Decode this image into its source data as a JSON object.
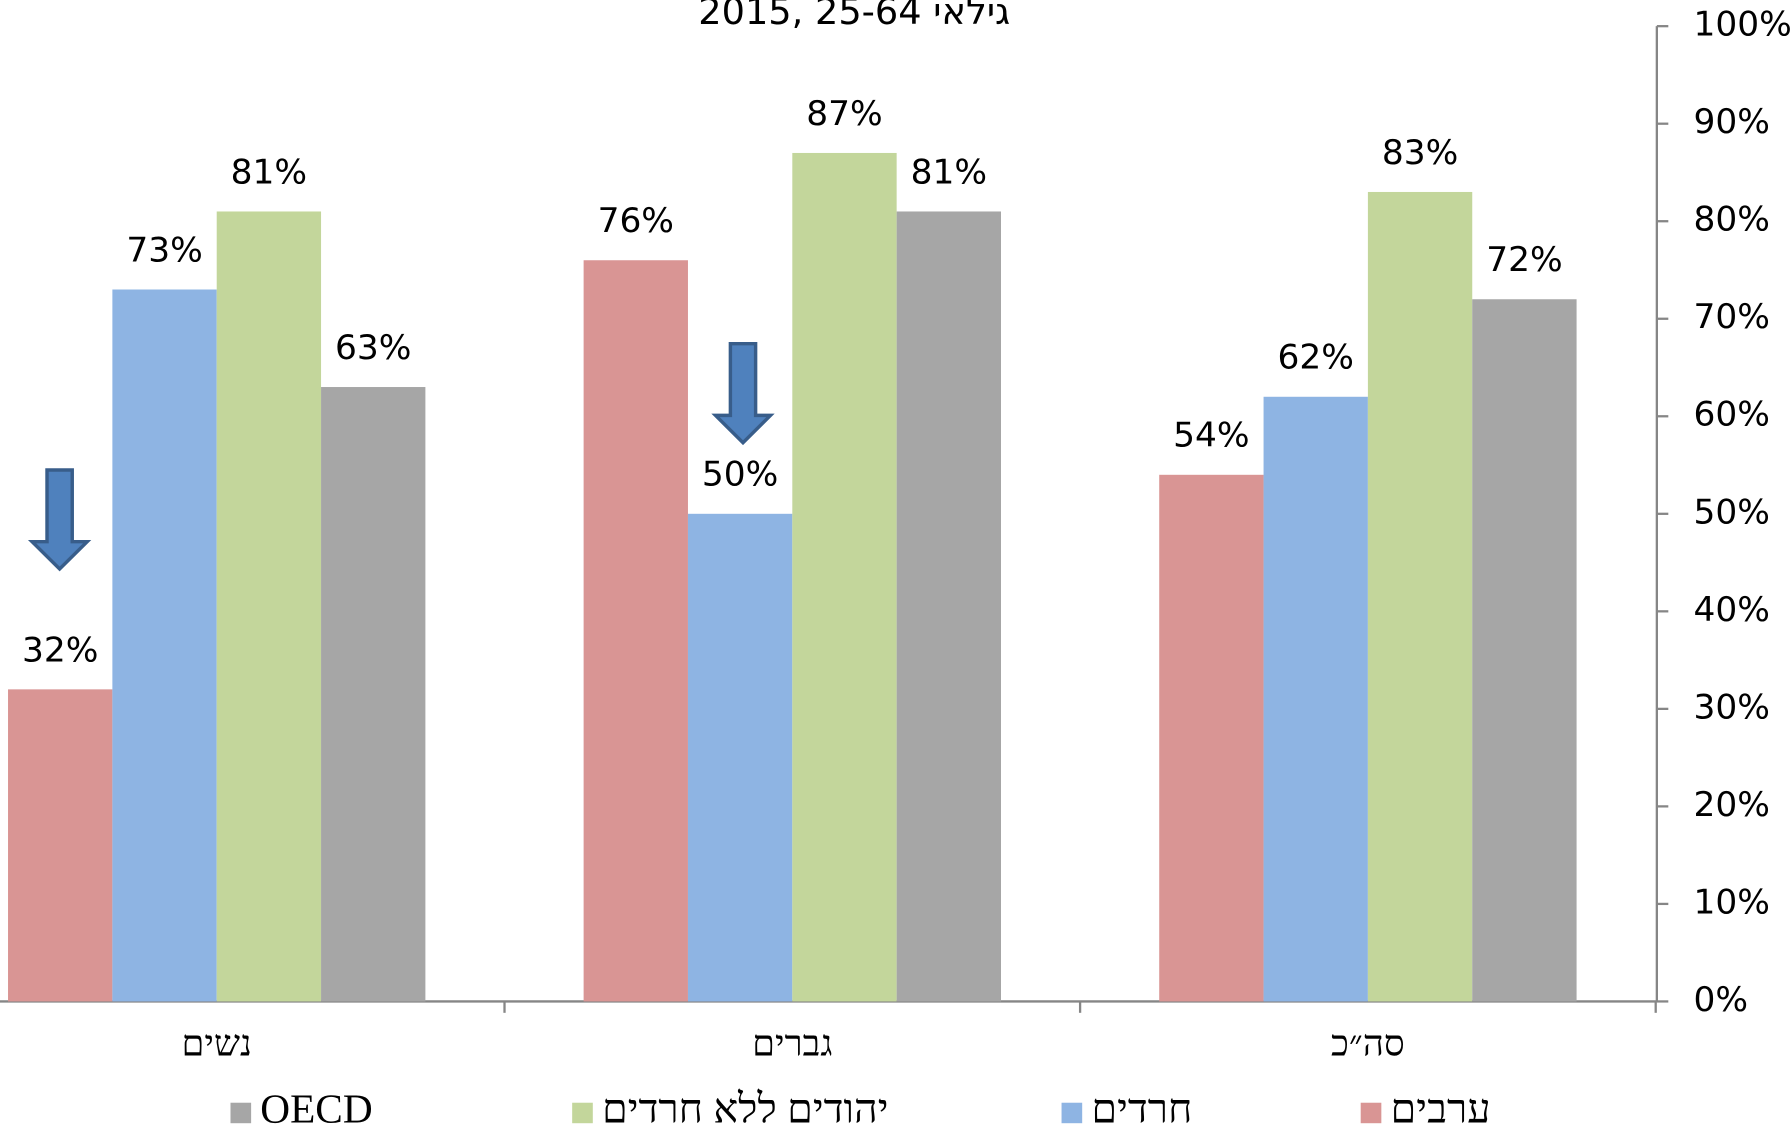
{
  "chart_data": {
    "type": "bar",
    "title": "2015, גילאי 25-64",
    "categories": [
      "נשים",
      "גברים",
      "סה״כ"
    ],
    "series": [
      {
        "name": "ערבים",
        "color": "#d99594",
        "values": [
          32,
          76,
          54
        ],
        "value_labels": [
          "32%",
          "76%",
          "54%"
        ]
      },
      {
        "name": "חרדים",
        "color": "#8eb4e3",
        "values": [
          73,
          50,
          62
        ],
        "value_labels": [
          "73%",
          "50%",
          "62%"
        ]
      },
      {
        "name": "יהודים ללא חרדים",
        "color": "#c3d69b",
        "values": [
          81,
          87,
          83
        ],
        "value_labels": [
          "81%",
          "87%",
          "83%"
        ]
      },
      {
        "name": "OECD",
        "color": "#a6a6a6",
        "values": [
          63,
          81,
          72
        ],
        "value_labels": [
          "63%",
          "81%",
          "72%"
        ]
      }
    ],
    "ylim": [
      0,
      100
    ],
    "yticks": [
      {
        "value": 0,
        "label": "0%"
      },
      {
        "value": 10,
        "label": "10%"
      },
      {
        "value": 20,
        "label": "20%"
      },
      {
        "value": 30,
        "label": "30%"
      },
      {
        "value": 40,
        "label": "40%"
      },
      {
        "value": 50,
        "label": "50%"
      },
      {
        "value": 60,
        "label": "60%"
      },
      {
        "value": 70,
        "label": "70%"
      },
      {
        "value": 80,
        "label": "80%"
      },
      {
        "value": 90,
        "label": "90%"
      },
      {
        "value": 100,
        "label": "100%"
      }
    ],
    "y_axis_side": "right",
    "grid": false
  }
}
